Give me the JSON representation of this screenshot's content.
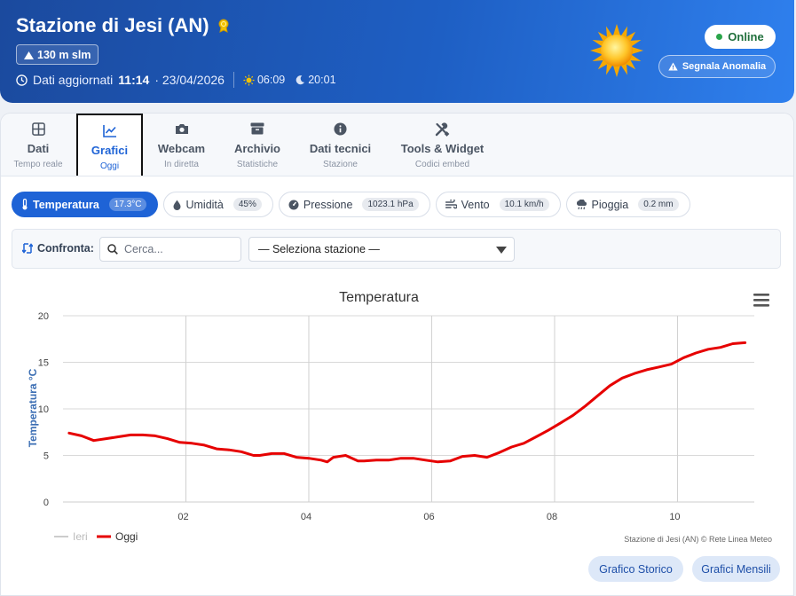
{
  "header": {
    "station": "Stazione di Jesi (AN)",
    "altitude": "130 m slm",
    "updated_label": "Dati aggiornati",
    "updated_time": "11:14",
    "updated_date": "· 23/04/2026",
    "sunrise": "06:09",
    "sunset": "20:01",
    "status": "Online",
    "report_button": "Segnala Anomalia"
  },
  "tabs": [
    {
      "label": "Dati",
      "sub": "Tempo reale",
      "icon": "grid-icon"
    },
    {
      "label": "Grafici",
      "sub": "Oggi",
      "icon": "chart-line-icon",
      "active": true
    },
    {
      "label": "Webcam",
      "sub": "In diretta",
      "icon": "camera-icon"
    },
    {
      "label": "Archivio",
      "sub": "Statistiche",
      "icon": "archive-icon"
    },
    {
      "label": "Dati tecnici",
      "sub": "Stazione",
      "icon": "info-icon"
    },
    {
      "label": "Tools & Widget",
      "sub": "Codici embed",
      "icon": "tools-icon"
    }
  ],
  "pills": [
    {
      "label": "Temperatura",
      "value": "17.3°C",
      "icon": "thermometer-icon",
      "active": true
    },
    {
      "label": "Umidità",
      "value": "45%",
      "icon": "droplet-icon"
    },
    {
      "label": "Pressione",
      "value": "1023.1 hPa",
      "icon": "gauge-icon"
    },
    {
      "label": "Vento",
      "value": "10.1 km/h",
      "icon": "wind-icon"
    },
    {
      "label": "Pioggia",
      "value": "0.2 mm",
      "icon": "rain-icon"
    }
  ],
  "compare": {
    "label": "Confronta:",
    "search_placeholder": "Cerca...",
    "select_value": "— Seleziona stazione —"
  },
  "chart_data": {
    "type": "line",
    "title": "Temperatura",
    "ylabel": "Temperatura °C",
    "xlabel": "",
    "xlim": [
      0,
      11.25
    ],
    "ylim": [
      0,
      20
    ],
    "y_ticks": [
      "0",
      "5",
      "10",
      "15",
      "20"
    ],
    "x_ticks": [
      {
        "v": 2,
        "label": "02"
      },
      {
        "v": 4,
        "label": "04"
      },
      {
        "v": 6,
        "label": "06"
      },
      {
        "v": 8,
        "label": "08"
      },
      {
        "v": 10,
        "label": "10"
      }
    ],
    "grid": true,
    "legend_position": "bottom-left",
    "credits": "Stazione di Jesi (AN) © Rete Linea Meteo",
    "series": [
      {
        "name": "Ieri",
        "color": "#cccccc",
        "visible": false,
        "x": [],
        "y": []
      },
      {
        "name": "Oggi",
        "color": "#e60000",
        "visible": true,
        "x": [
          0.1,
          0.3,
          0.5,
          0.7,
          0.9,
          1.1,
          1.3,
          1.5,
          1.7,
          1.9,
          2.1,
          2.3,
          2.5,
          2.7,
          2.9,
          3.1,
          3.2,
          3.4,
          3.6,
          3.8,
          4.0,
          4.2,
          4.3,
          4.4,
          4.6,
          4.8,
          4.9,
          5.1,
          5.3,
          5.5,
          5.7,
          5.9,
          6.1,
          6.3,
          6.5,
          6.7,
          6.9,
          7.1,
          7.3,
          7.5,
          7.7,
          7.9,
          8.1,
          8.3,
          8.5,
          8.7,
          8.9,
          9.1,
          9.3,
          9.5,
          9.7,
          9.9,
          10.1,
          10.3,
          10.5,
          10.7,
          10.9,
          11.1
        ],
        "y": [
          7.4,
          7.1,
          6.6,
          6.8,
          7.0,
          7.2,
          7.2,
          7.1,
          6.8,
          6.4,
          6.3,
          6.1,
          5.7,
          5.6,
          5.4,
          5.0,
          5.0,
          5.2,
          5.2,
          4.8,
          4.7,
          4.5,
          4.3,
          4.8,
          5.0,
          4.4,
          4.4,
          4.5,
          4.5,
          4.7,
          4.7,
          4.5,
          4.3,
          4.4,
          4.9,
          5.0,
          4.8,
          5.3,
          5.9,
          6.3,
          7.0,
          7.7,
          8.5,
          9.3,
          10.3,
          11.4,
          12.5,
          13.3,
          13.8,
          14.2,
          14.5,
          14.8,
          15.5,
          16.0,
          16.4,
          16.6,
          17.0,
          17.1
        ]
      }
    ]
  },
  "buttons": {
    "history": "Grafico Storico",
    "monthly": "Grafici Mensili"
  },
  "colors": {
    "accent": "#1e63d6",
    "header_start": "#1b4a9e",
    "header_end": "#2f80ee",
    "online": "#2aa54a",
    "series_today": "#e60000"
  }
}
